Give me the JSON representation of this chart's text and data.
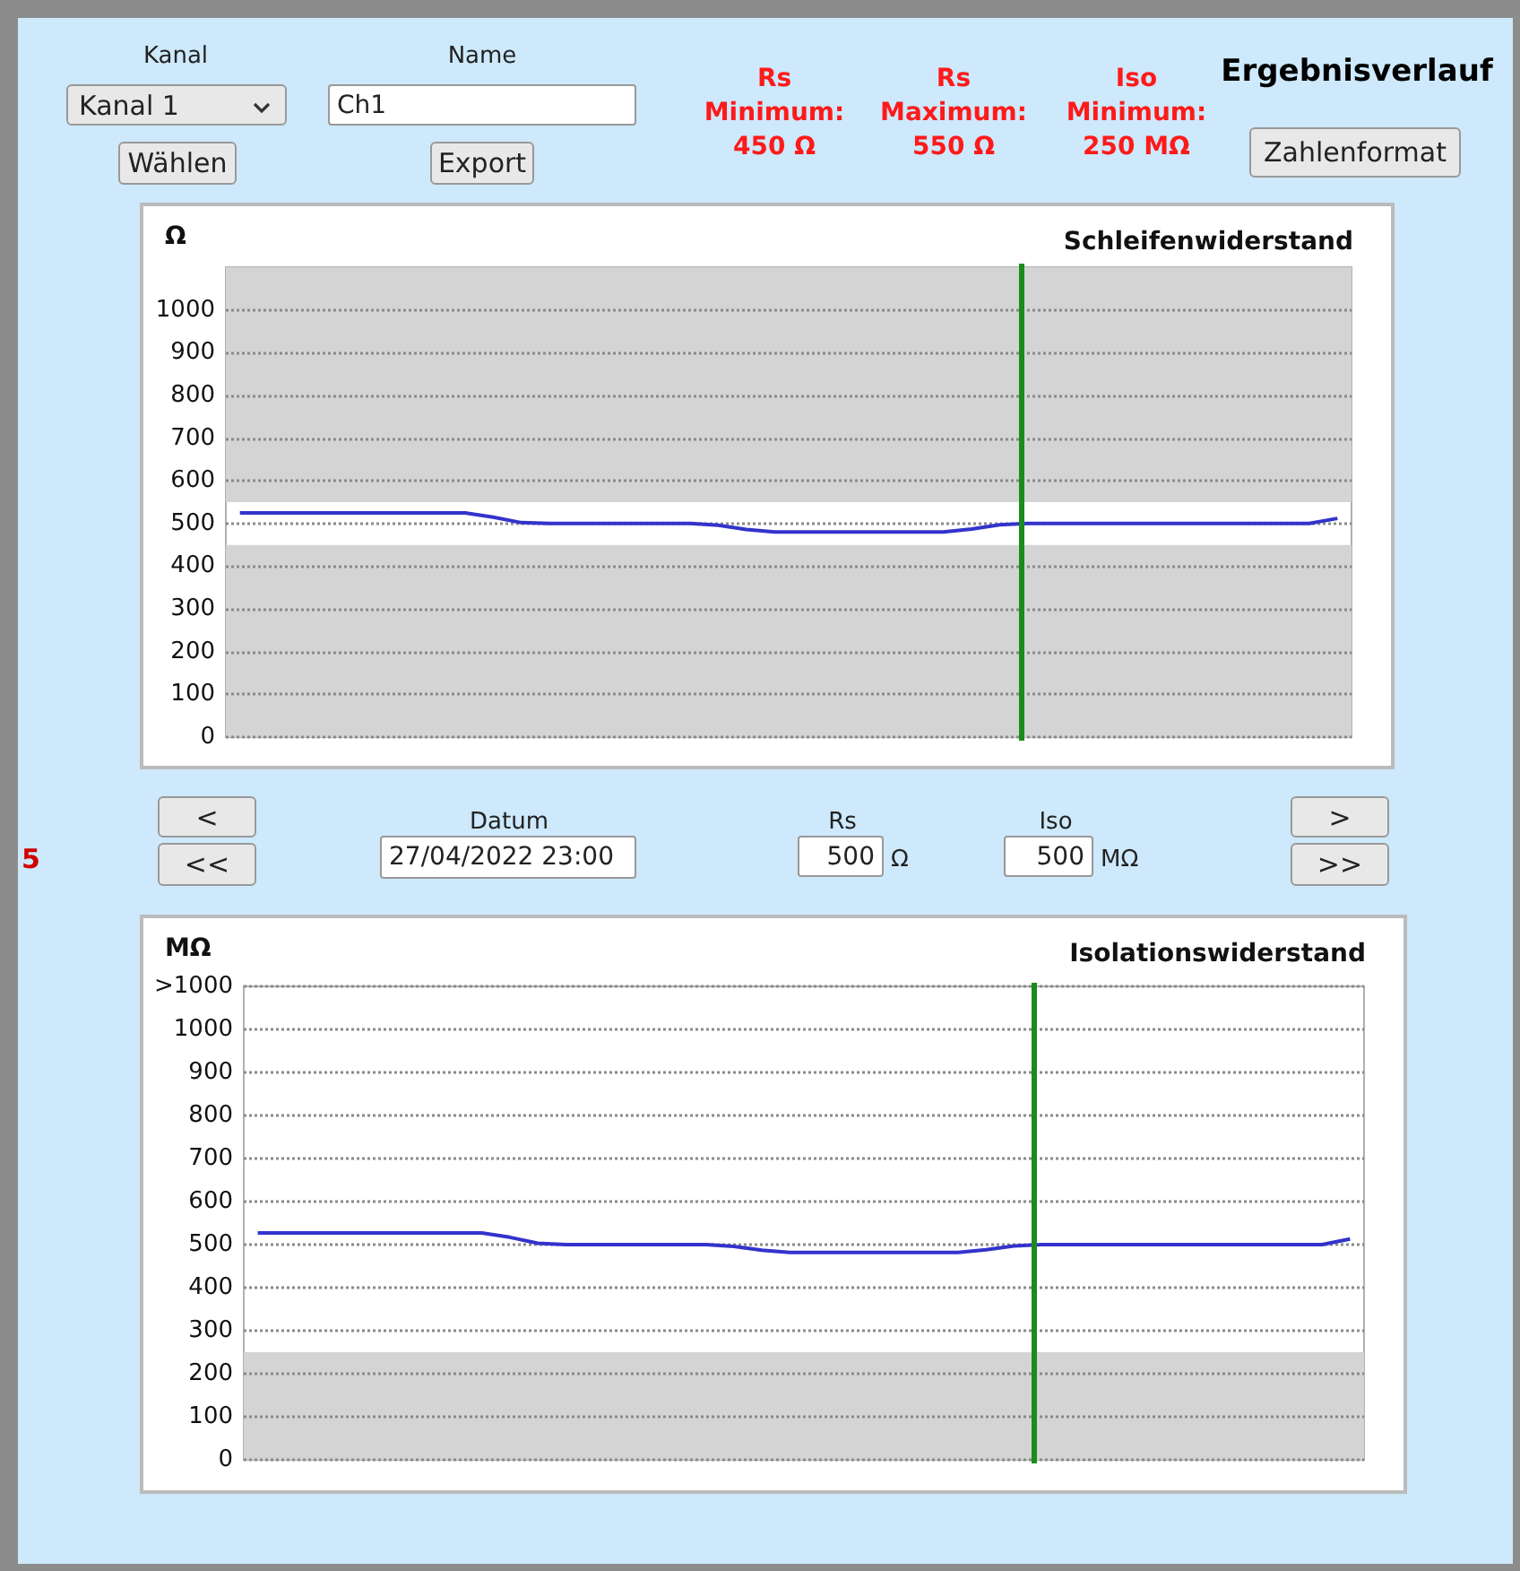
{
  "chart_data": [
    {
      "type": "other",
      "title": "Ergebnisverlauf",
      "annotations": [
        "Kanal",
        "Kanal 1",
        "Wählen",
        "Name",
        "Ch1",
        "Export",
        "Rs\nMinimum:\n450 Ω",
        "Rs\nMaximum:\n550 Ω",
        "Iso\nMinimum:\n250 MΩ",
        "Zahlenformat"
      ]
    },
    {
      "type": "line",
      "title": "Schleifenwiderstand",
      "ylabel": "Ω",
      "categories": [
        null,
        null,
        null,
        null,
        null,
        null,
        null,
        null,
        null,
        null,
        null,
        null,
        null,
        null,
        null,
        null,
        null,
        null,
        null,
        null,
        null,
        null,
        null,
        null,
        null,
        null,
        null,
        null,
        null,
        null,
        null,
        null,
        null,
        null,
        null,
        null,
        null,
        null,
        null,
        null
      ],
      "ylim": [
        0,
        1100
      ],
      "yticks": [
        0,
        100,
        200,
        300,
        400,
        500,
        600,
        700,
        800,
        900,
        1000
      ],
      "grid": "y",
      "marker": "none",
      "series": [
        {
          "color": "#3333cc",
          "values": [
            525,
            525,
            525,
            525,
            525,
            525,
            525,
            525,
            525,
            515,
            502,
            500,
            500,
            500,
            500,
            500,
            500,
            496,
            486,
            480,
            480,
            480,
            480,
            480,
            480,
            480,
            487,
            497,
            500,
            500,
            500,
            500,
            500,
            500,
            500,
            500,
            500,
            500,
            500,
            512
          ]
        }
      ],
      "bands": [
        {
          "axis": "y",
          "from": 0,
          "to": 450,
          "color": "#d4d4d4"
        },
        {
          "axis": "y",
          "from": 550,
          "to": 1100,
          "color": "#d4d4d4"
        }
      ]
    },
    {
      "type": "other",
      "annotations": [
        "<",
        "<<",
        "Datum",
        "27/04/2022 23:00",
        "Rs",
        "500",
        "Ω",
        "Iso",
        "500",
        "MΩ",
        ">",
        ">>",
        "5"
      ]
    },
    {
      "type": "line",
      "title": "Isolationswiderstand",
      "ylabel": "MΩ",
      "categories": [
        null,
        null,
        null,
        null,
        null,
        null,
        null,
        null,
        null,
        null,
        null,
        null,
        null,
        null,
        null,
        null,
        null,
        null,
        null,
        null,
        null,
        null,
        null,
        null,
        null,
        null,
        null,
        null,
        null,
        null,
        null,
        null,
        null,
        null,
        null,
        null,
        null,
        null,
        null,
        null
      ],
      "ylim": [
        0,
        1100
      ],
      "yticks": [
        0,
        100,
        200,
        300,
        400,
        500,
        600,
        700,
        800,
        900,
        1000,
        {
          "value": 1100,
          "label": ">1000"
        }
      ],
      "grid": "y",
      "marker": "none",
      "series": [
        {
          "color": "#3333cc",
          "values": [
            527,
            527,
            527,
            527,
            527,
            527,
            527,
            527,
            527,
            517,
            503,
            500,
            500,
            500,
            500,
            500,
            500,
            496,
            487,
            482,
            482,
            482,
            482,
            482,
            482,
            482,
            488,
            497,
            500,
            500,
            500,
            500,
            500,
            500,
            500,
            500,
            500,
            500,
            500,
            513
          ]
        }
      ],
      "bands": [
        {
          "axis": "y",
          "from": 0,
          "to": 250,
          "color": "#d4d4d4"
        }
      ]
    }
  ]
}
